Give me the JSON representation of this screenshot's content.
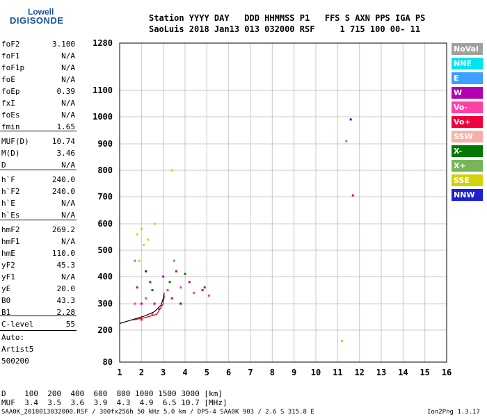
{
  "logo": {
    "line1": "Lowell",
    "line2": "DIGISONDE"
  },
  "header": {
    "line1": "Station YYYY DAY   DDD HHMMSS P1   FFS S AXN PPS IGA PS",
    "line2": "SaoLuis 2018 Jan13 013 032000 RSF     1 715 100 00- 11"
  },
  "params": [
    {
      "k": "foF2",
      "v": "3.100"
    },
    {
      "k": "foF1",
      "v": "N/A"
    },
    {
      "k": "foF1p",
      "v": "N/A"
    },
    {
      "k": "foE",
      "v": "N/A"
    },
    {
      "k": "foEp",
      "v": "0.39"
    },
    {
      "k": "fxI",
      "v": "N/A"
    },
    {
      "k": "foEs",
      "v": "N/A"
    },
    {
      "k": "fmin",
      "v": "1.65"
    },
    {
      "k": "MUF(D)",
      "v": "10.74"
    },
    {
      "k": "M(D)",
      "v": "3.46"
    },
    {
      "k": "D",
      "v": "N/A"
    },
    {
      "k": "h`F",
      "v": "240.0"
    },
    {
      "k": "h`F2",
      "v": "240.0"
    },
    {
      "k": "h`E",
      "v": "N/A"
    },
    {
      "k": "h`Es",
      "v": "N/A"
    },
    {
      "k": "hmF2",
      "v": "269.2"
    },
    {
      "k": "hmF1",
      "v": "N/A"
    },
    {
      "k": "hmE",
      "v": "110.0"
    },
    {
      "k": "yF2",
      "v": "45.3"
    },
    {
      "k": "yF1",
      "v": "N/A"
    },
    {
      "k": "yE",
      "v": "20.0"
    },
    {
      "k": "B0",
      "v": "43.3"
    },
    {
      "k": "B1",
      "v": "2.28"
    },
    {
      "k": "C-level",
      "v": "55"
    }
  ],
  "auto": {
    "line1": "Auto:",
    "line2": "Artist5",
    "line3": "500200"
  },
  "bottom": {
    "line1": "D    100  200  400  600  800 1000 1500 3000 [km]",
    "line2": "MUF  3.4  3.5  3.6  3.9  4.3  4.9  6.5 10.7 [MHz]"
  },
  "footer": "SAA0K_2018013032000.RSF / 300fx256h 50 kHz 5.0 km / DPS-4 SAA0K 903 / 2.6 S 315.8 E",
  "version": "Ion2Png 1.3.17",
  "legend": [
    {
      "label": "NoVal",
      "color": "#a0a0a0"
    },
    {
      "label": "NNE",
      "color": "#00e5ee"
    },
    {
      "label": "E",
      "color": "#3ea0ff"
    },
    {
      "label": "W",
      "color": "#b400b4"
    },
    {
      "label": "Vo-",
      "color": "#ff3fa7"
    },
    {
      "label": "Vo+",
      "color": "#f0003c"
    },
    {
      "label": "SSW",
      "color": "#f7b0a8"
    },
    {
      "label": "X-",
      "color": "#007800"
    },
    {
      "label": "X+",
      "color": "#78b45a"
    },
    {
      "label": "SSE",
      "color": "#d2d20a"
    },
    {
      "label": "NNW",
      "color": "#1e1ed2"
    }
  ],
  "chart_data": {
    "type": "scatter",
    "xlim": [
      1,
      16
    ],
    "x_ticks": [
      1,
      2,
      3,
      4,
      5,
      6,
      7,
      8,
      9,
      10,
      11,
      12,
      13,
      14,
      15,
      16
    ],
    "ylim": [
      80,
      1280
    ],
    "y_ticks": [
      80,
      200,
      300,
      400,
      500,
      600,
      700,
      800,
      900,
      1000,
      1100,
      1280
    ],
    "grid": true,
    "series": [
      {
        "name": "SSE",
        "points": [
          [
            1.8,
            560
          ],
          [
            2.0,
            580
          ],
          [
            2.1,
            520
          ],
          [
            2.3,
            540
          ],
          [
            1.9,
            460
          ],
          [
            2.6,
            600
          ],
          [
            11.2,
            160
          ],
          [
            3.4,
            800
          ]
        ]
      },
      {
        "name": "Vo-",
        "points": [
          [
            1.7,
            300
          ],
          [
            2.2,
            320
          ],
          [
            2.8,
            280
          ],
          [
            3.2,
            350
          ],
          [
            3.8,
            360
          ],
          [
            4.4,
            340
          ],
          [
            5.1,
            330
          ],
          [
            2.5,
            260
          ]
        ]
      },
      {
        "name": "W",
        "points": [
          [
            1.8,
            360
          ],
          [
            2.4,
            380
          ],
          [
            3.0,
            400
          ],
          [
            3.6,
            420
          ],
          [
            4.2,
            380
          ],
          [
            4.8,
            350
          ],
          [
            2.0,
            300
          ]
        ]
      },
      {
        "name": "Vo+",
        "points": [
          [
            2.0,
            240
          ],
          [
            2.6,
            300
          ],
          [
            3.4,
            320
          ],
          [
            11.7,
            705
          ]
        ]
      },
      {
        "name": "X-",
        "points": [
          [
            2.5,
            350
          ],
          [
            3.3,
            380
          ],
          [
            4.0,
            410
          ],
          [
            4.9,
            360
          ]
        ]
      },
      {
        "name": "E",
        "points": [
          [
            1.7,
            460
          ],
          [
            11.4,
            910
          ],
          [
            3.5,
            460
          ]
        ]
      },
      {
        "name": "NNW",
        "points": [
          [
            11.6,
            990
          ],
          [
            2.2,
            420
          ],
          [
            3.8,
            300
          ]
        ]
      }
    ],
    "traces": [
      {
        "name": "black",
        "points": [
          [
            1.0,
            225
          ],
          [
            1.6,
            240
          ],
          [
            2.2,
            255
          ],
          [
            2.6,
            270
          ],
          [
            2.9,
            295
          ],
          [
            3.0,
            320
          ],
          [
            3.05,
            340
          ]
        ]
      },
      {
        "name": "red",
        "points": [
          [
            1.6,
            238
          ],
          [
            2.2,
            248
          ],
          [
            2.7,
            260
          ],
          [
            3.0,
            300
          ],
          [
            3.05,
            330
          ]
        ]
      }
    ]
  }
}
